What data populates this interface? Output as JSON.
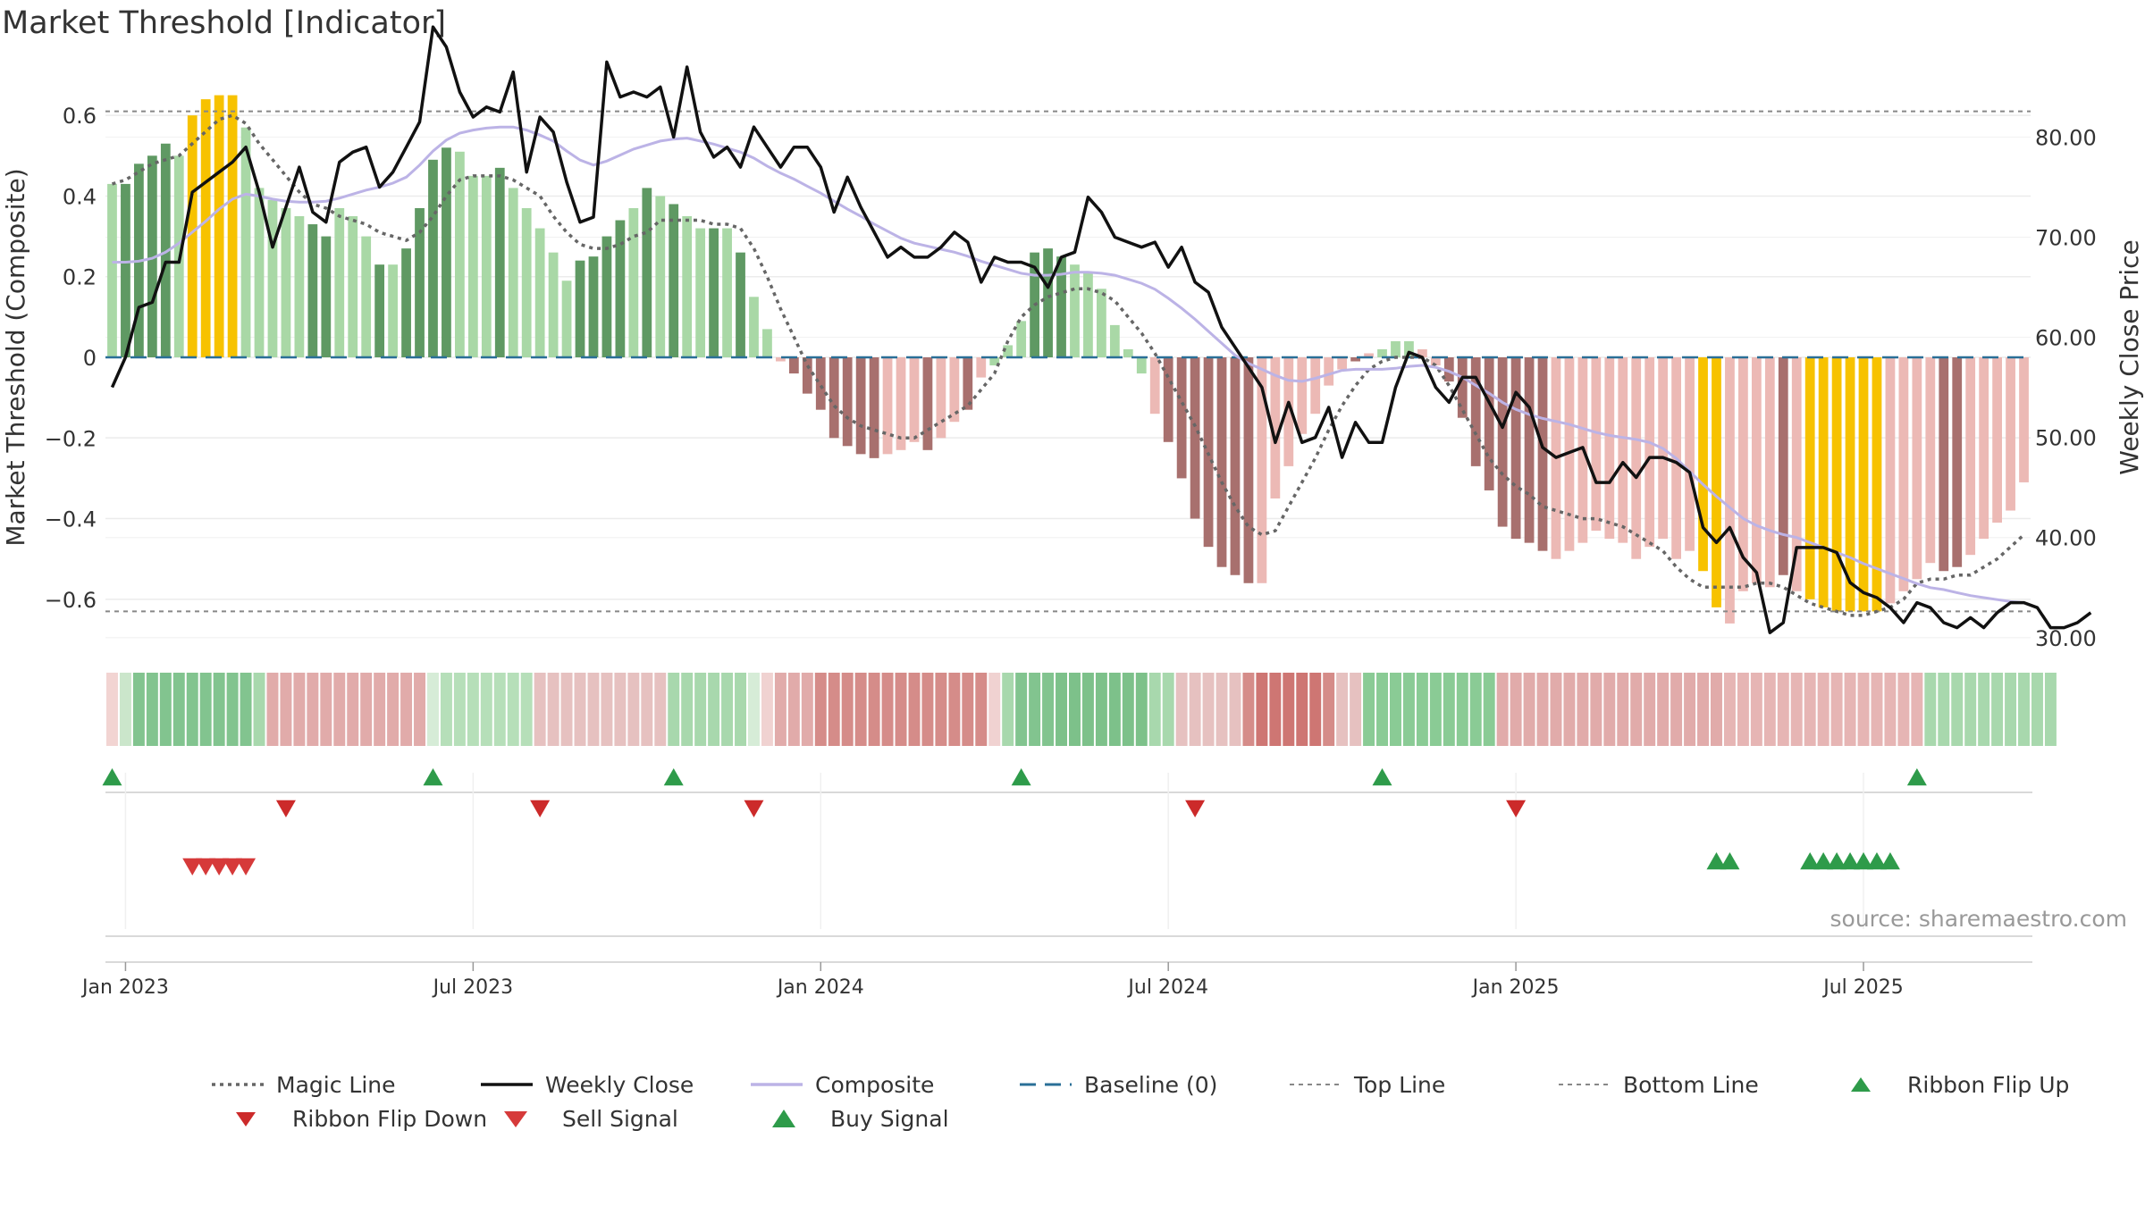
{
  "page": {
    "title": "Market Threshold [Indicator]",
    "source": "source: sharemaestro.com"
  },
  "colors": {
    "dark_green": "#5f9963",
    "light_green": "#a9d8a6",
    "dark_red": "#a8706e",
    "light_red": "#ecb9b5",
    "yellow": "#f7c200",
    "close_line": "#111111",
    "composite_line": "#bcb3e6",
    "magic_line": "#666666",
    "baseline": "#2a6f97",
    "signal_green": "#2e9b4a",
    "signal_red": "#d63a3a"
  },
  "legend": [
    {
      "key": "magic",
      "label": "Magic Line",
      "symbol": "dotted-line"
    },
    {
      "key": "close",
      "label": "Weekly Close",
      "symbol": "solid-line"
    },
    {
      "key": "composite",
      "label": "Composite",
      "symbol": "lavender-line"
    },
    {
      "key": "baseline",
      "label": "Baseline (0)",
      "symbol": "dashed-line"
    },
    {
      "key": "top",
      "label": "Top Line",
      "symbol": "thin-dashed-line"
    },
    {
      "key": "bottom",
      "label": "Bottom Line",
      "symbol": "thin-dashed-line"
    },
    {
      "key": "flipup",
      "label": "Ribbon Flip Up",
      "symbol": "green-triangle-up"
    },
    {
      "key": "flipdown",
      "label": "Ribbon Flip Down",
      "symbol": "red-triangle-down"
    },
    {
      "key": "sell",
      "label": "Sell Signal",
      "symbol": "red-triangle-down-large"
    },
    {
      "key": "buy",
      "label": "Buy Signal",
      "symbol": "green-triangle-up-large"
    }
  ],
  "chart_data": {
    "type": "bar",
    "ylabel": "Market Threshold (Composite)",
    "y2label": "Weekly Close Price",
    "ylim": [
      -0.72,
      0.72
    ],
    "y2lim": [
      29,
      87
    ],
    "yticks": [
      0.6,
      0.4,
      0.2,
      0,
      -0.2,
      -0.4,
      -0.6
    ],
    "ytick_labels": [
      "0.6",
      "0.4",
      "0.2",
      "0",
      "−0.2",
      "−0.4",
      "−0.6"
    ],
    "y2ticks": [
      80,
      70,
      60,
      50,
      40,
      30
    ],
    "y2tick_labels": [
      "80.00",
      "70.00",
      "60.00",
      "50.00",
      "40.00",
      "30.00"
    ],
    "x_tick_weeks": [
      1,
      27,
      53,
      79,
      105,
      131
    ],
    "x_tick_labels": [
      "Jan 2023",
      "Jul 2023",
      "Jan 2024",
      "Jul 2024",
      "Jan 2025",
      "Jul 2025"
    ],
    "week_count": 144,
    "top_line": 0.61,
    "bottom_line": -0.63,
    "baseline": 0,
    "composite_bars": [
      0.43,
      0.43,
      0.48,
      0.5,
      0.53,
      0.5,
      0.6,
      0.64,
      0.65,
      0.65,
      0.57,
      0.42,
      0.39,
      0.37,
      0.35,
      0.33,
      0.3,
      0.37,
      0.35,
      0.3,
      0.23,
      0.23,
      0.27,
      0.37,
      0.49,
      0.52,
      0.51,
      0.45,
      0.45,
      0.47,
      0.42,
      0.37,
      0.32,
      0.26,
      0.19,
      0.24,
      0.25,
      0.3,
      0.34,
      0.37,
      0.42,
      0.4,
      0.38,
      0.35,
      0.32,
      0.32,
      0.32,
      0.26,
      0.15,
      0.07,
      -0.01,
      -0.04,
      -0.09,
      -0.13,
      -0.2,
      -0.22,
      -0.24,
      -0.25,
      -0.24,
      -0.23,
      -0.21,
      -0.23,
      -0.2,
      -0.16,
      -0.13,
      -0.05,
      -0.02,
      0.03,
      0.09,
      0.26,
      0.27,
      0.25,
      0.23,
      0.21,
      0.17,
      0.08,
      0.02,
      -0.04,
      -0.14,
      -0.21,
      -0.3,
      -0.4,
      -0.47,
      -0.52,
      -0.54,
      -0.56,
      -0.56,
      -0.35,
      -0.27,
      -0.19,
      -0.14,
      -0.07,
      -0.03,
      -0.01,
      0.01,
      0.02,
      0.04,
      0.04,
      0.02,
      -0.02,
      -0.06,
      -0.15,
      -0.27,
      -0.33,
      -0.42,
      -0.45,
      -0.46,
      -0.48,
      -0.5,
      -0.48,
      -0.46,
      -0.43,
      -0.45,
      -0.46,
      -0.5,
      -0.47,
      -0.45,
      -0.5,
      -0.48,
      -0.53,
      -0.62,
      -0.66,
      -0.58,
      -0.56,
      -0.57,
      -0.54,
      -0.58,
      -0.6,
      -0.62,
      -0.63,
      -0.63,
      -0.63,
      -0.63,
      -0.61,
      -0.58,
      -0.55,
      -0.51,
      -0.53,
      -0.52,
      -0.49,
      -0.45,
      -0.41,
      -0.38,
      -0.31
    ],
    "bar_colors": [
      "lg",
      "dg",
      "dg",
      "dg",
      "dg",
      "lg",
      "y",
      "y",
      "y",
      "y",
      "lg",
      "lg",
      "lg",
      "lg",
      "lg",
      "dg",
      "dg",
      "lg",
      "lg",
      "lg",
      "dg",
      "lg",
      "dg",
      "dg",
      "dg",
      "dg",
      "lg",
      "lg",
      "lg",
      "dg",
      "lg",
      "lg",
      "lg",
      "lg",
      "lg",
      "dg",
      "dg",
      "dg",
      "dg",
      "lg",
      "dg",
      "lg",
      "dg",
      "lg",
      "lg",
      "dg",
      "lg",
      "dg",
      "lg",
      "lg",
      "lr",
      "dr",
      "dr",
      "dr",
      "dr",
      "dr",
      "dr",
      "dr",
      "lr",
      "lr",
      "lr",
      "dr",
      "lr",
      "lr",
      "dr",
      "lr",
      "lg",
      "lg",
      "lg",
      "dg",
      "dg",
      "dg",
      "lg",
      "lg",
      "lg",
      "lg",
      "lg",
      "lg",
      "lr",
      "dr",
      "dr",
      "dr",
      "dr",
      "dr",
      "dr",
      "dr",
      "lr",
      "lr",
      "lr",
      "lr",
      "lr",
      "lr",
      "lr",
      "dr",
      "lr",
      "lg",
      "lg",
      "lg",
      "lr",
      "lr",
      "dr",
      "dr",
      "dr",
      "dr",
      "dr",
      "dr",
      "dr",
      "dr",
      "lr",
      "lr",
      "lr",
      "lr",
      "lr",
      "lr",
      "lr",
      "lr",
      "lr",
      "lr",
      "lr",
      "y",
      "y",
      "lr",
      "lr",
      "lr",
      "lr",
      "dr",
      "lr",
      "y",
      "y",
      "y",
      "y",
      "y",
      "y",
      "lr",
      "lr",
      "lr",
      "lr",
      "dr",
      "dr",
      "lr",
      "lr",
      "lr",
      "lr",
      "lr",
      "lr",
      "lr",
      "lr"
    ],
    "magic_line": [
      0.43,
      0.44,
      0.46,
      0.48,
      0.49,
      0.5,
      0.53,
      0.56,
      0.59,
      0.6,
      0.58,
      0.53,
      0.49,
      0.45,
      0.41,
      0.38,
      0.37,
      0.35,
      0.34,
      0.33,
      0.31,
      0.3,
      0.29,
      0.31,
      0.35,
      0.4,
      0.44,
      0.45,
      0.45,
      0.45,
      0.44,
      0.42,
      0.4,
      0.35,
      0.31,
      0.28,
      0.27,
      0.27,
      0.28,
      0.3,
      0.31,
      0.34,
      0.34,
      0.34,
      0.34,
      0.33,
      0.33,
      0.32,
      0.27,
      0.2,
      0.12,
      0.05,
      -0.02,
      -0.07,
      -0.12,
      -0.15,
      -0.17,
      -0.18,
      -0.19,
      -0.2,
      -0.2,
      -0.18,
      -0.16,
      -0.14,
      -0.12,
      -0.08,
      -0.04,
      0.04,
      0.1,
      0.13,
      0.15,
      0.16,
      0.17,
      0.17,
      0.16,
      0.14,
      0.1,
      0.06,
      0.01,
      -0.05,
      -0.11,
      -0.17,
      -0.24,
      -0.31,
      -0.37,
      -0.42,
      -0.44,
      -0.43,
      -0.37,
      -0.31,
      -0.25,
      -0.18,
      -0.12,
      -0.07,
      -0.03,
      -0.01,
      0.0,
      0.0,
      0.0,
      -0.02,
      -0.07,
      -0.13,
      -0.19,
      -0.25,
      -0.29,
      -0.32,
      -0.34,
      -0.37,
      -0.38,
      -0.39,
      -0.4,
      -0.4,
      -0.41,
      -0.42,
      -0.44,
      -0.46,
      -0.48,
      -0.52,
      -0.55,
      -0.57,
      -0.57,
      -0.57,
      -0.57,
      -0.56,
      -0.56,
      -0.57,
      -0.59,
      -0.61,
      -0.62,
      -0.63,
      -0.64,
      -0.64,
      -0.63,
      -0.62,
      -0.6,
      -0.56,
      -0.55,
      -0.55,
      -0.54,
      -0.54,
      -0.52,
      -0.5,
      -0.47,
      -0.44
    ],
    "weekly_close": [
      55.0,
      58.0,
      63.0,
      63.5,
      67.5,
      67.5,
      74.5,
      75.5,
      76.5,
      77.5,
      79.0,
      74.5,
      69.0,
      73.0,
      77.0,
      72.5,
      71.5,
      77.5,
      78.5,
      79.0,
      75.0,
      76.5,
      79.0,
      81.5,
      91.0,
      89.0,
      84.5,
      82.0,
      83.0,
      82.5,
      86.5,
      76.5,
      82.0,
      80.5,
      75.5,
      71.5,
      72.0,
      87.5,
      84.0,
      84.5,
      84.0,
      85.0,
      80.0,
      87.0,
      80.5,
      78.0,
      79.0,
      77.0,
      81.0,
      79.0,
      77.0,
      79.0,
      79.0,
      77.0,
      72.5,
      76.0,
      73.0,
      70.5,
      68.0,
      69.0,
      68.0,
      68.0,
      69.0,
      70.5,
      69.5,
      65.5,
      68.0,
      67.5,
      67.5,
      67.0,
      65.0,
      68.0,
      68.5,
      74.0,
      72.5,
      70.0,
      69.5,
      69.0,
      69.5,
      67.0,
      69.0,
      65.5,
      64.5,
      61.0,
      59.0,
      57.0,
      55.0,
      49.5,
      53.5,
      49.5,
      50.0,
      53.0,
      48.0,
      51.5,
      49.5,
      49.5,
      55.0,
      58.5,
      58.0,
      55.0,
      53.5,
      56.0,
      56.0,
      53.5,
      51.0,
      54.5,
      53.0,
      49.0,
      48.0,
      48.5,
      49.0,
      45.5,
      45.5,
      47.5,
      46.0,
      48.0,
      48.0,
      47.5,
      46.5,
      41.0,
      39.5,
      41.0,
      38.0,
      36.5,
      30.5,
      31.5,
      39.0,
      39.0,
      39.0,
      38.5,
      35.5,
      34.5,
      34.0,
      33.0,
      31.5,
      33.5,
      33.0,
      31.5,
      31.0,
      32.0,
      31.0,
      32.5,
      33.5,
      33.5,
      33.0,
      31.0,
      31.0,
      31.5,
      32.5
    ],
    "composite_line": [
      67.5,
      67.5,
      67.6,
      67.9,
      68.5,
      69.4,
      70.5,
      71.6,
      72.8,
      73.8,
      74.3,
      74.1,
      73.8,
      73.6,
      73.5,
      73.5,
      73.6,
      73.9,
      74.3,
      74.7,
      75.0,
      75.4,
      76.0,
      77.2,
      78.6,
      79.7,
      80.4,
      80.7,
      80.9,
      81.0,
      81.0,
      80.7,
      80.2,
      79.6,
      78.6,
      77.7,
      77.2,
      77.6,
      78.2,
      78.8,
      79.2,
      79.6,
      79.8,
      79.9,
      79.6,
      79.3,
      78.9,
      78.5,
      77.9,
      77.1,
      76.4,
      75.8,
      75.1,
      74.4,
      73.6,
      72.8,
      72.1,
      71.3,
      70.6,
      69.9,
      69.4,
      69.1,
      68.8,
      68.5,
      68.1,
      67.6,
      67.2,
      66.8,
      66.4,
      66.2,
      66.2,
      66.3,
      66.5,
      66.5,
      66.4,
      66.2,
      65.8,
      65.4,
      64.8,
      63.9,
      62.9,
      61.8,
      60.6,
      59.4,
      58.2,
      57.4,
      56.8,
      56.2,
      55.7,
      55.6,
      55.9,
      56.3,
      56.7,
      56.8,
      56.8,
      56.8,
      56.9,
      57.1,
      57.2,
      57.0,
      56.6,
      56.0,
      55.2,
      54.4,
      53.5,
      52.8,
      52.3,
      51.9,
      51.6,
      51.3,
      50.9,
      50.5,
      50.2,
      50.0,
      49.8,
      49.5,
      48.9,
      47.9,
      46.6,
      45.3,
      44.1,
      43.0,
      41.9,
      41.2,
      40.7,
      40.3,
      40.0,
      39.5,
      39.0,
      38.5,
      38.0,
      37.4,
      36.9,
      36.4,
      35.9,
      35.4,
      35.0,
      34.8,
      34.5,
      34.2,
      34.0,
      33.8,
      33.6,
      33.5
    ],
    "ribbon_colors": [
      "#f2d4d2",
      "#cbe6cb",
      "#82c48f",
      "#82c48f",
      "#82c48f",
      "#82c48f",
      "#82c48f",
      "#82c48f",
      "#82c48f",
      "#82c48f",
      "#82c48f",
      "#a8d8ad",
      "#e1abaa",
      "#e1abaa",
      "#e1abaa",
      "#e1abaa",
      "#e1abaa",
      "#e1abaa",
      "#e1abaa",
      "#e1abaa",
      "#e1abaa",
      "#e1abaa",
      "#e1abaa",
      "#e1abaa",
      "#d6ecd7",
      "#b6dfb9",
      "#b6dfb9",
      "#b6dfb9",
      "#b6dfb9",
      "#b6dfb9",
      "#b6dfb9",
      "#b6dfb9",
      "#e6c1c0",
      "#e6c1c0",
      "#e6c1c0",
      "#e6c1c0",
      "#e6c1c0",
      "#e6c1c0",
      "#e6c1c0",
      "#e6c1c0",
      "#e6c1c0",
      "#e6c1c0",
      "#a8d8ad",
      "#a8d8ad",
      "#a8d8ad",
      "#a8d8ad",
      "#a8d8ad",
      "#a8d8ad",
      "#d6ecd7",
      "#f0d2d1",
      "#e1abaa",
      "#e1abaa",
      "#e1abaa",
      "#d58c89",
      "#d58c89",
      "#d58c89",
      "#d58c89",
      "#d58c89",
      "#d58c89",
      "#d58c89",
      "#d58c89",
      "#d58c89",
      "#d58c89",
      "#d58c89",
      "#d58c89",
      "#d58c89",
      "#f0d2d1",
      "#a8d8ad",
      "#82c48f",
      "#82c48f",
      "#82c48f",
      "#7dc18a",
      "#7dc18a",
      "#7dc18a",
      "#7dc18a",
      "#7dc18a",
      "#7dc18a",
      "#7dc18a",
      "#a8d8ad",
      "#a8d8ad",
      "#e6c1c0",
      "#e6c1c0",
      "#e6c1c0",
      "#e6c1c0",
      "#e6c1c0",
      "#d58c89",
      "#ce7673",
      "#ce7673",
      "#ce7673",
      "#ce7673",
      "#ce7673",
      "#d58c89",
      "#e6c1c0",
      "#e6c1c0",
      "#8acb95",
      "#8acb95",
      "#8acb95",
      "#8acb95",
      "#8acb95",
      "#8acb95",
      "#8acb95",
      "#8acb95",
      "#8acb95",
      "#8acb95",
      "#e1abaa",
      "#e1abaa",
      "#e1abaa",
      "#e1abaa",
      "#e1abaa",
      "#e1abaa",
      "#e1abaa",
      "#e1abaa",
      "#e1abaa",
      "#e1abaa",
      "#e1abaa",
      "#e1abaa",
      "#e1abaa",
      "#e1abaa",
      "#e1abaa",
      "#e1abaa",
      "#e1abaa",
      "#e6b5b4",
      "#e6b5b4",
      "#e6b5b4",
      "#e6b5b4",
      "#e6b5b4",
      "#e6b5b4",
      "#e6b5b4",
      "#e6b5b4",
      "#e6b5b4",
      "#e6b5b4",
      "#e6b5b4",
      "#e6b5b4",
      "#e6b5b4",
      "#e6b5b4",
      "#e6b5b4",
      "#a8d8ad",
      "#a8d8ad",
      "#a8d8ad",
      "#a8d8ad",
      "#a8d8ad",
      "#a8d8ad",
      "#a8d8ad",
      "#a8d8ad",
      "#a8d8ad",
      "#a8d8ad"
    ],
    "ribbon_flip_up_weeks": [
      0,
      24,
      42,
      68,
      95,
      135
    ],
    "ribbon_flip_down_weeks": [
      13,
      32,
      48,
      81,
      105
    ],
    "sell_signal_weeks": [
      6,
      7,
      8,
      9,
      10
    ],
    "buy_signal_weeks": [
      120,
      121,
      127,
      128,
      129,
      130,
      131,
      132,
      133
    ]
  }
}
